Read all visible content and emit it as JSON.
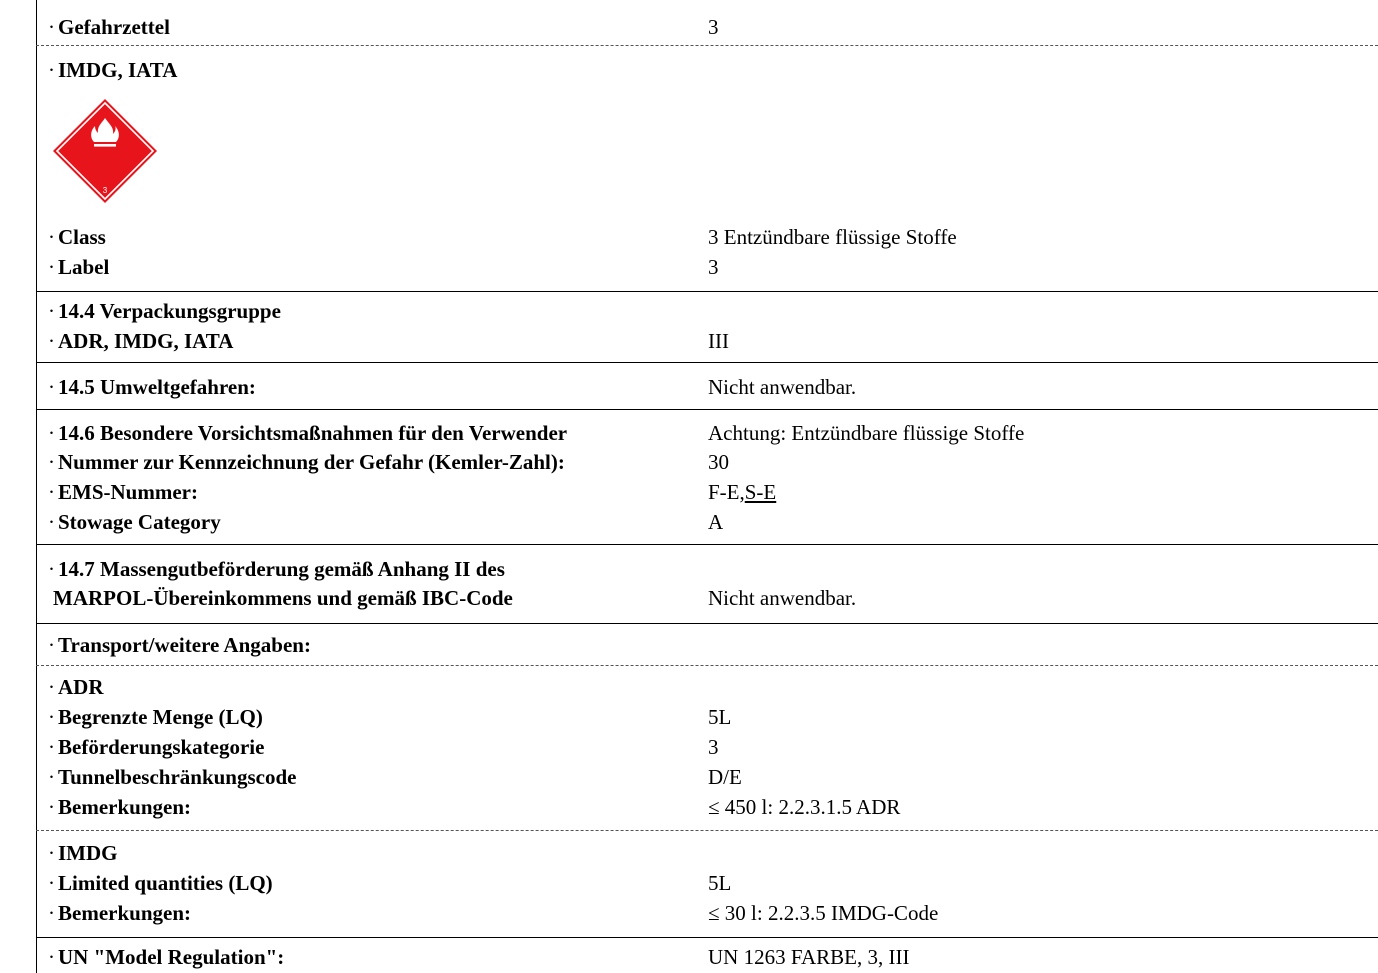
{
  "rows": [
    {
      "label": "Gefahrzettel",
      "value": "3"
    },
    {
      "label": "IMDG, IATA",
      "value": ""
    },
    {
      "label": "Class",
      "value": "3 Entzündbare flüssige Stoffe"
    },
    {
      "label": "Label",
      "value": "3"
    },
    {
      "label": "14.4 Verpackungsgruppe",
      "value": ""
    },
    {
      "label": "ADR, IMDG, IATA",
      "value": "III"
    },
    {
      "label": "14.5 Umweltgefahren:",
      "value": "Nicht anwendbar."
    },
    {
      "label": "14.6 Besondere Vorsichtsmaßnahmen für den Verwender",
      "value": "Achtung: Entzündbare flüssige Stoffe"
    },
    {
      "label": "Nummer zur Kennzeichnung der Gefahr (Kemler-Zahl):",
      "value": "30"
    },
    {
      "label": "EMS-Nummer:",
      "value_a": "F-E,",
      "value_b": "S-E"
    },
    {
      "label": "Stowage Category",
      "value": "A"
    },
    {
      "label": "14.7 Massengutbeförderung gemäß Anhang II des",
      "value": ""
    },
    {
      "label": "MARPOL-Übereinkommens und gemäß IBC-Code",
      "value": "Nicht anwendbar."
    },
    {
      "label": "Transport/weitere Angaben:",
      "value": ""
    },
    {
      "label": "ADR",
      "value": ""
    },
    {
      "label": "Begrenzte Menge (LQ)",
      "value": "5L"
    },
    {
      "label": "Beförderungskategorie",
      "value": "3"
    },
    {
      "label": "Tunnelbeschränkungscode",
      "value": "D/E"
    },
    {
      "label": "Bemerkungen:",
      "value": "≤ 450 l: 2.2.3.1.5 ADR"
    },
    {
      "label": "IMDG",
      "value": ""
    },
    {
      "label": "Limited quantities (LQ)",
      "value": "5L"
    },
    {
      "label": "Bemerkungen:",
      "value": "≤ 30 l: 2.2.3.5 IMDG-Code"
    },
    {
      "label": "UN \"Model Regulation\":",
      "value": "UN 1263 FARBE, 3, III"
    }
  ],
  "placard": {
    "number": "3",
    "color": "#e8141b",
    "icon": "flame-icon"
  },
  "bullet": "·"
}
